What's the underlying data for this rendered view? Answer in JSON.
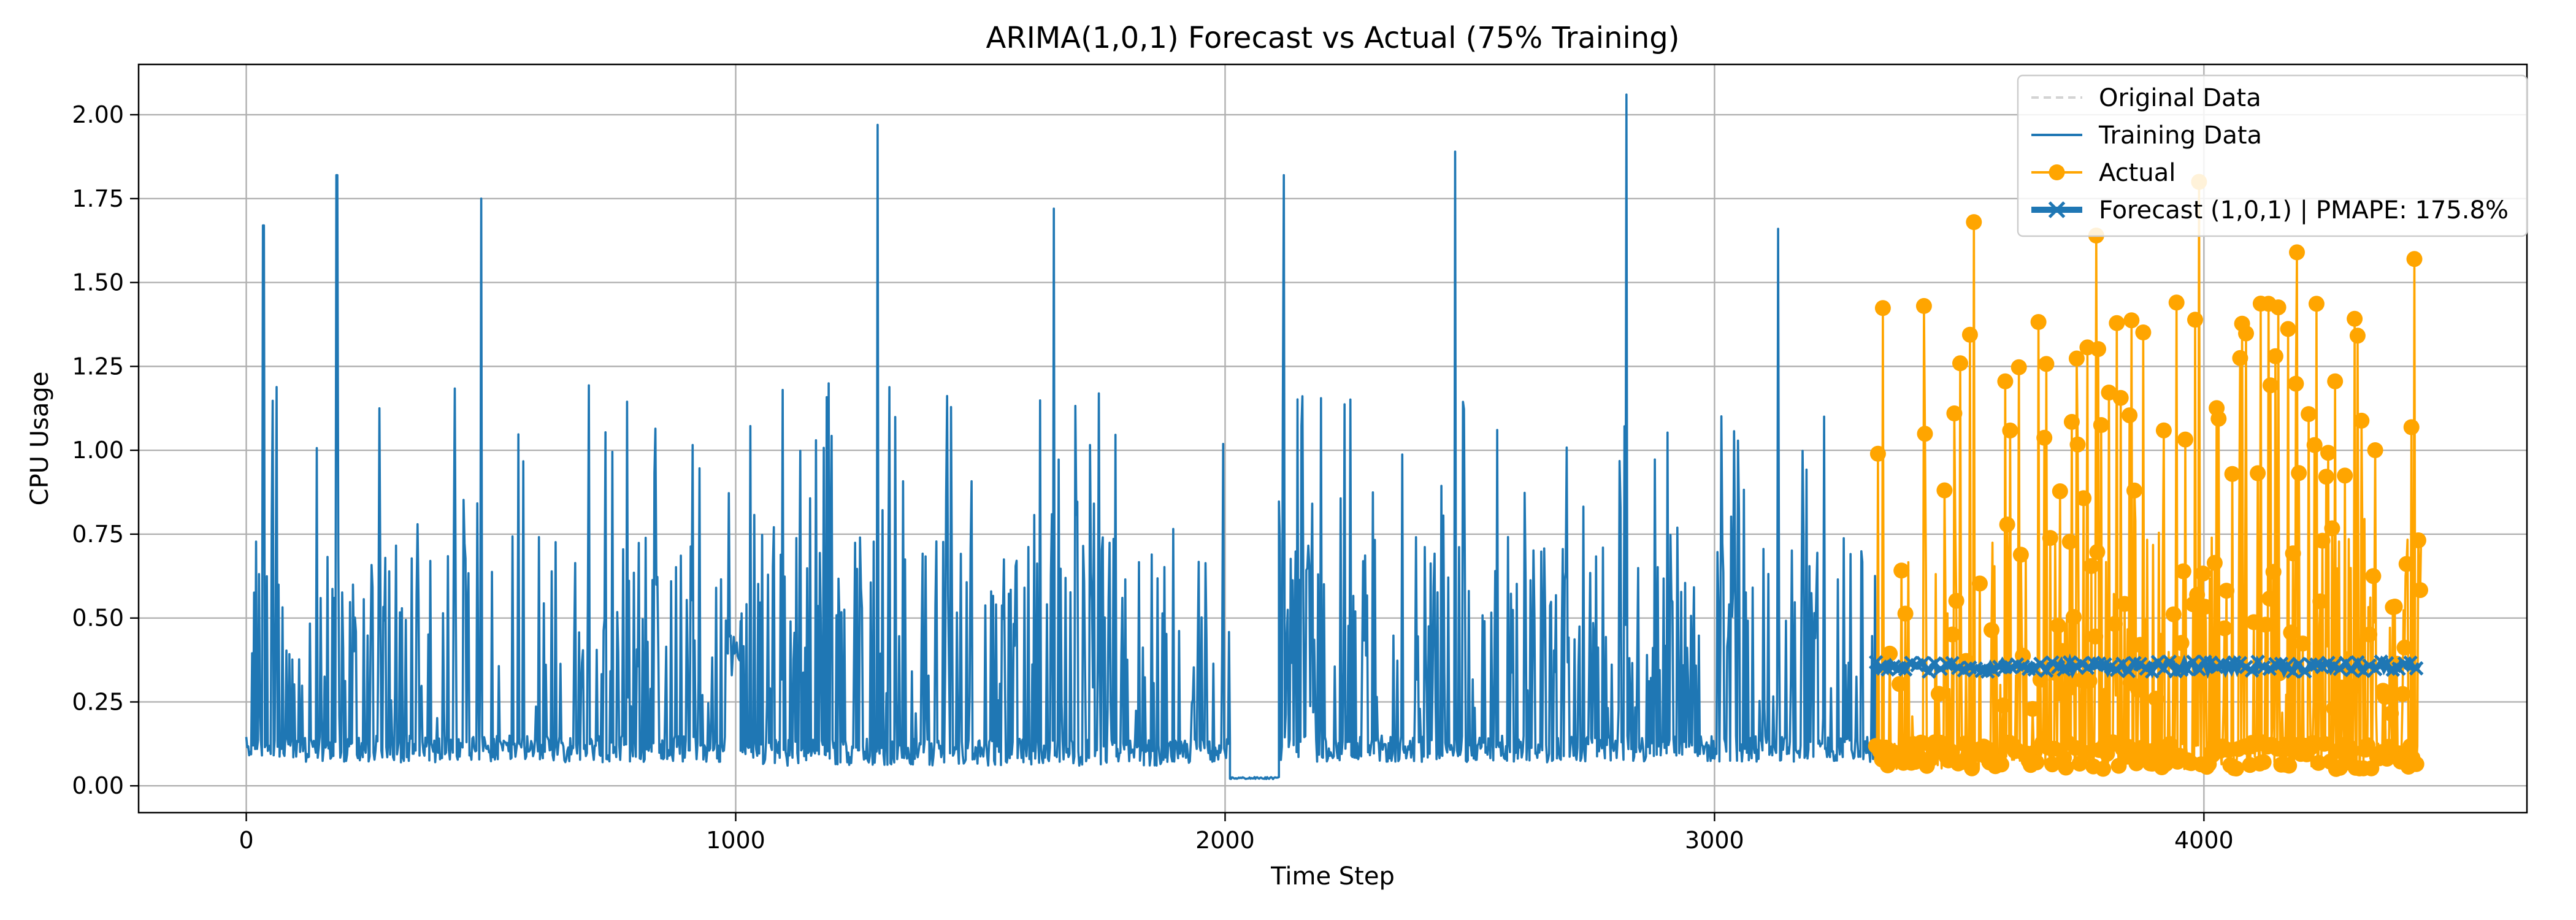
{
  "chart_data": {
    "type": "line",
    "title": "ARIMA(1,0,1) Forecast vs Actual (75% Training)",
    "xlabel": "Time Step",
    "ylabel": "CPU Usage",
    "xlim": [
      -220,
      4660
    ],
    "ylim": [
      -0.08,
      2.15
    ],
    "xticks": [
      0,
      1000,
      2000,
      3000,
      4000
    ],
    "xtick_labels": [
      "0",
      "1000",
      "2000",
      "3000",
      "4000"
    ],
    "yticks": [
      0.0,
      0.25,
      0.5,
      0.75,
      1.0,
      1.25,
      1.5,
      1.75,
      2.0
    ],
    "ytick_labels": [
      "0.00",
      "0.25",
      "0.50",
      "0.75",
      "1.00",
      "1.25",
      "1.50",
      "1.75",
      "2.00"
    ],
    "grid": true,
    "legend_position": "top-right",
    "series": [
      {
        "name": "Original Data",
        "color": "#d3d3d3",
        "style": "dashed",
        "x_range": [
          0,
          4440
        ],
        "note_values_estimated": true
      },
      {
        "name": "Training Data",
        "color": "#1f77b4",
        "style": "solid",
        "x_range": [
          0,
          3330
        ],
        "baseline_range": [
          0.05,
          0.15
        ],
        "peak_range": [
          0.8,
          2.06
        ],
        "segments": [
          {
            "x_start": 0,
            "x_end": 980,
            "baseline": 0.1
          },
          {
            "x_start": 980,
            "x_end": 1010,
            "baseline": 0.4
          },
          {
            "x_start": 1010,
            "x_end": 2010,
            "baseline": 0.09
          },
          {
            "x_start": 2010,
            "x_end": 2110,
            "baseline": 0.02,
            "flat": true
          },
          {
            "x_start": 2110,
            "x_end": 3330,
            "baseline": 0.1
          }
        ],
        "notable_peaks": [
          {
            "x": 35,
            "y": 1.67
          },
          {
            "x": 185,
            "y": 1.82
          },
          {
            "x": 480,
            "y": 1.75
          },
          {
            "x": 1290,
            "y": 1.97
          },
          {
            "x": 1650,
            "y": 1.72
          },
          {
            "x": 2120,
            "y": 1.82
          },
          {
            "x": 2470,
            "y": 1.89
          },
          {
            "x": 2820,
            "y": 2.06
          },
          {
            "x": 3130,
            "y": 1.66
          }
        ]
      },
      {
        "name": "Actual",
        "color": "#ffa500",
        "style": "solid-marker",
        "marker": "circle",
        "x_range": [
          3330,
          4445
        ],
        "baseline_range": [
          0.04,
          0.12
        ],
        "peak_range": [
          0.85,
          1.8
        ],
        "notable_peaks": [
          {
            "x": 3530,
            "y": 1.68
          },
          {
            "x": 3780,
            "y": 1.64
          },
          {
            "x": 3990,
            "y": 1.8
          },
          {
            "x": 4190,
            "y": 1.59
          },
          {
            "x": 4430,
            "y": 1.57
          }
        ]
      },
      {
        "name": "Forecast (1,0,1) | PMAPE: 175.8%",
        "color": "#1f77b4",
        "style": "thick-x-marker",
        "marker": "x",
        "x_range": [
          3330,
          4445
        ],
        "level_range": [
          0.34,
          0.37
        ]
      }
    ]
  }
}
